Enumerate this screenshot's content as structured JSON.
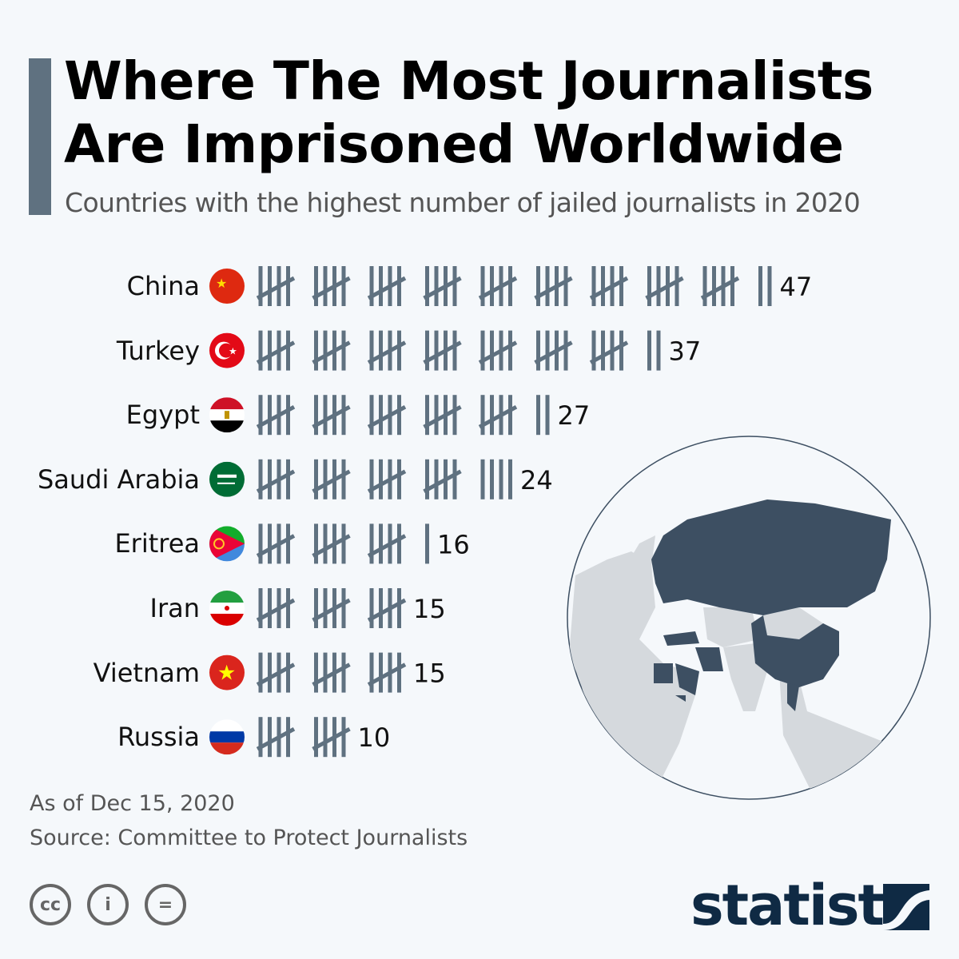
{
  "title_line1": "Where The Most Journalists",
  "title_line2": "Are Imprisoned Worldwide",
  "subtitle": "Countries with the highest number of jailed journalists in 2020",
  "footer": {
    "date": "As of Dec 15, 2020",
    "source": "Source: Committee to Protect Journalists"
  },
  "license_icons": [
    "cc-icon",
    "attribution-icon",
    "no-derivatives-icon"
  ],
  "brand": "statista",
  "colors": {
    "tally": "#5f7180",
    "map_dark": "#3d4f62",
    "map_light": "#d5d9dd"
  },
  "chart_data": {
    "type": "bar",
    "style": "tally-marks",
    "title": "Where The Most Journalists Are Imprisoned Worldwide",
    "categories": [
      "China",
      "Turkey",
      "Egypt",
      "Saudi Arabia",
      "Eritrea",
      "Iran",
      "Vietnam",
      "Russia"
    ],
    "values": [
      47,
      37,
      27,
      24,
      16,
      15,
      15,
      10
    ],
    "flags": [
      "china-flag",
      "turkey-flag",
      "egypt-flag",
      "saudi-arabia-flag",
      "eritrea-flag",
      "iran-flag",
      "vietnam-flag",
      "russia-flag"
    ]
  }
}
